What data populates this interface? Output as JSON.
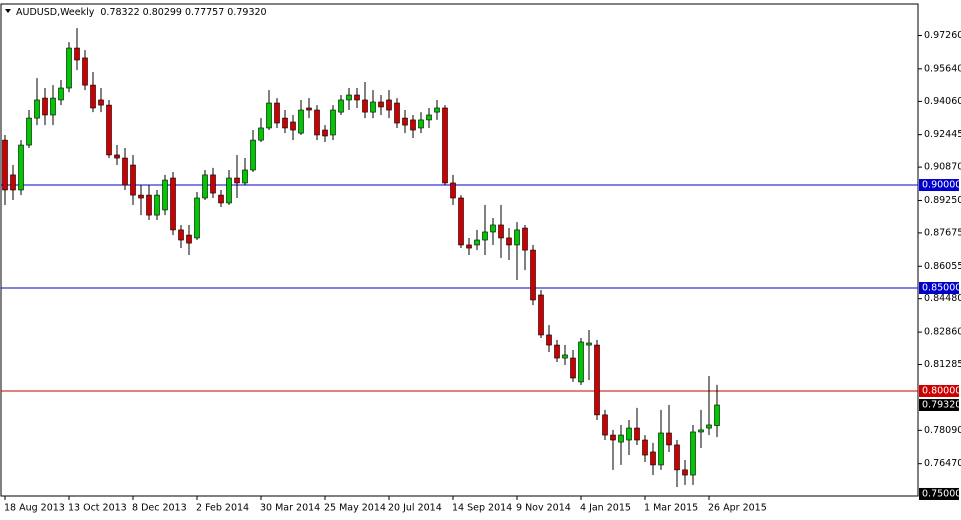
{
  "chart_data": {
    "type": "candlestick",
    "title": "AUDUSD,Weekly",
    "ohlc_label": "0.78322 0.80299 0.77757 0.79320",
    "up_color": "#00c800",
    "down_color": "#cc0000",
    "categories": [
      "18 Aug 2013",
      null,
      null,
      null,
      null,
      null,
      null,
      null,
      "13 Oct 2013",
      null,
      null,
      null,
      null,
      null,
      null,
      null,
      "8 Dec 2013",
      null,
      null,
      null,
      null,
      null,
      null,
      null,
      "2 Feb 2014",
      null,
      null,
      null,
      null,
      null,
      null,
      null,
      "30 Mar 2014",
      null,
      null,
      null,
      null,
      null,
      null,
      null,
      "25 May 2014",
      null,
      null,
      null,
      null,
      null,
      null,
      null,
      "20 Jul 2014",
      null,
      null,
      null,
      null,
      null,
      null,
      null,
      "14 Sep 2014",
      null,
      null,
      null,
      null,
      null,
      null,
      null,
      "9 Nov 2014",
      null,
      null,
      null,
      null,
      null,
      null,
      null,
      "4 Jan 2015",
      null,
      null,
      null,
      null,
      null,
      null,
      null,
      "1 Mar 2015",
      null,
      null,
      null,
      null,
      null,
      null,
      null,
      "26 Apr 2015",
      null
    ],
    "open": [
      0.9218,
      0.9049,
      0.8976,
      0.9194,
      0.9325,
      0.9422,
      0.934,
      0.9413,
      0.9471,
      0.9665,
      0.9617,
      0.9485,
      0.9413,
      0.9388,
      0.9146,
      0.9131,
      0.9097,
      0.8951,
      0.8951,
      0.8854,
      0.8879,
      0.9034,
      0.8782,
      0.8757,
      0.8743,
      0.8937,
      0.9049,
      0.8951,
      0.8913,
      0.9034,
      0.901,
      0.9073,
      0.9218,
      0.9277,
      0.9398,
      0.9325,
      0.9306,
      0.9252,
      0.9374,
      0.9364,
      0.9267,
      0.9243,
      0.9354,
      0.9413,
      0.9437,
      0.9413,
      0.9354,
      0.9403,
      0.9413,
      0.9398,
      0.9325,
      0.9316,
      0.9277,
      0.9316,
      0.9354,
      0.9374,
      0.901,
      0.8937,
      0.8709,
      0.8709,
      0.8733,
      0.8772,
      0.8806,
      0.8743,
      0.8709,
      0.8791,
      0.8684,
      0.8466,
      0.8272,
      0.8223,
      0.816,
      0.816,
      0.8044,
      0.8223,
      0.8223,
      0.7884,
      0.7786,
      0.7752,
      0.7762,
      0.782,
      0.7762,
      0.7704,
      0.7641,
      0.7796,
      0.7738,
      0.7617,
      0.7592,
      0.7801,
      0.782,
      0.78322
    ],
    "high": [
      0.9243,
      0.9097,
      0.9218,
      0.9364,
      0.9519,
      0.9471,
      0.9485,
      0.951,
      0.9694,
      0.9762,
      0.9655,
      0.9549,
      0.9471,
      0.9413,
      0.9194,
      0.918,
      0.9146,
      0.9,
      0.9,
      0.8976,
      0.9049,
      0.9063,
      0.8806,
      0.8806,
      0.8966,
      0.9073,
      0.9083,
      0.8976,
      0.9073,
      0.9146,
      0.9131,
      0.9267,
      0.9325,
      0.9461,
      0.9422,
      0.9364,
      0.934,
      0.9413,
      0.9422,
      0.9388,
      0.9291,
      0.9388,
      0.9437,
      0.9471,
      0.9471,
      0.95,
      0.9461,
      0.9437,
      0.9461,
      0.9422,
      0.9364,
      0.934,
      0.9354,
      0.9374,
      0.9413,
      0.9388,
      0.9049,
      0.8951,
      0.8743,
      0.8782,
      0.8903,
      0.884,
      0.8903,
      0.8791,
      0.882,
      0.8806,
      0.8709,
      0.849,
      0.832,
      0.8248,
      0.8223,
      0.8199,
      0.8257,
      0.8296,
      0.8248,
      0.7908,
      0.7811,
      0.7835,
      0.7859,
      0.7918,
      0.7786,
      0.7748,
      0.7908,
      0.7932,
      0.7762,
      0.7665,
      0.7835,
      0.7908,
      0.8073,
      0.80299
    ],
    "low": [
      0.8903,
      0.8927,
      0.8951,
      0.918,
      0.9291,
      0.9291,
      0.9291,
      0.9388,
      0.9451,
      0.9558,
      0.9461,
      0.9354,
      0.9354,
      0.9131,
      0.9097,
      0.8976,
      0.8903,
      0.8854,
      0.883,
      0.883,
      0.8854,
      0.8757,
      0.8694,
      0.866,
      0.8733,
      0.8927,
      0.8937,
      0.8893,
      0.8903,
      0.8937,
      0.9,
      0.9063,
      0.9209,
      0.9267,
      0.9277,
      0.9252,
      0.9218,
      0.9243,
      0.9325,
      0.9218,
      0.9209,
      0.9218,
      0.934,
      0.9364,
      0.9374,
      0.9325,
      0.9325,
      0.934,
      0.9325,
      0.9277,
      0.9252,
      0.9228,
      0.9252,
      0.9277,
      0.9316,
      0.9,
      0.8903,
      0.8694,
      0.866,
      0.8684,
      0.866,
      0.8709,
      0.8646,
      0.8636,
      0.8539,
      0.8587,
      0.8417,
      0.8257,
      0.8189,
      0.8141,
      0.8126,
      0.8044,
      0.8029,
      0.8053,
      0.7859,
      0.7762,
      0.7617,
      0.7641,
      0.7689,
      0.7738,
      0.7655,
      0.7592,
      0.7617,
      0.7704,
      0.7534,
      0.7544,
      0.7544,
      0.7723,
      0.7786,
      0.77757
    ],
    "close": [
      0.8976,
      0.8976,
      0.9194,
      0.9325,
      0.9413,
      0.934,
      0.9422,
      0.9471,
      0.9665,
      0.9607,
      0.9485,
      0.9374,
      0.9388,
      0.9146,
      0.9131,
      0.9,
      0.8951,
      0.8937,
      0.8854,
      0.8951,
      0.9024,
      0.8782,
      0.8733,
      0.8718,
      0.8937,
      0.9049,
      0.8961,
      0.8913,
      0.9034,
      0.901,
      0.9073,
      0.9218,
      0.9277,
      0.9398,
      0.9301,
      0.9277,
      0.9267,
      0.9364,
      0.9364,
      0.9243,
      0.9238,
      0.9364,
      0.9413,
      0.9437,
      0.9413,
      0.9354,
      0.9403,
      0.9379,
      0.9364,
      0.9301,
      0.9291,
      0.9267,
      0.9316,
      0.934,
      0.9374,
      0.901,
      0.8937,
      0.8709,
      0.8694,
      0.8733,
      0.8772,
      0.8806,
      0.8743,
      0.8709,
      0.8782,
      0.8684,
      0.8442,
      0.8272,
      0.8223,
      0.816,
      0.8175,
      0.8063,
      0.8238,
      0.8233,
      0.7884,
      0.7786,
      0.7762,
      0.7786,
      0.782,
      0.7762,
      0.7689,
      0.7641,
      0.7796,
      0.7738,
      0.7617,
      0.7592,
      0.7801,
      0.7811,
      0.7835,
      0.7932
    ],
    "ylim": [
      0.7495,
      0.9874
    ],
    "yticks": [
      {
        "value": 0.9726,
        "label": "0.97260"
      },
      {
        "value": 0.9564,
        "label": "0.95640"
      },
      {
        "value": 0.9406,
        "label": "0.94060"
      },
      {
        "value": 0.92445,
        "label": "0.92445"
      },
      {
        "value": 0.9087,
        "label": "0.90870"
      },
      {
        "value": 0.8925,
        "label": "0.89250"
      },
      {
        "value": 0.87675,
        "label": "0.87675"
      },
      {
        "value": 0.86055,
        "label": "0.86055"
      },
      {
        "value": 0.8448,
        "label": "0.84480"
      },
      {
        "value": 0.8286,
        "label": "0.82860"
      },
      {
        "value": 0.81285,
        "label": "0.81285"
      },
      {
        "value": 0.7809,
        "label": "0.78090"
      },
      {
        "value": 0.7647,
        "label": "0.76470"
      }
    ],
    "hlines": [
      {
        "value": 0.9,
        "label": "0.90000",
        "color": "#0000cc"
      },
      {
        "value": 0.85,
        "label": "0.85000",
        "color": "#0000cc"
      },
      {
        "value": 0.8,
        "label": "0.80000",
        "color": "#cc0000"
      }
    ],
    "price_boxes": [
      {
        "value": 0.7932,
        "label": "0.79320"
      },
      {
        "value": 0.75,
        "label": "0.75000"
      }
    ]
  }
}
